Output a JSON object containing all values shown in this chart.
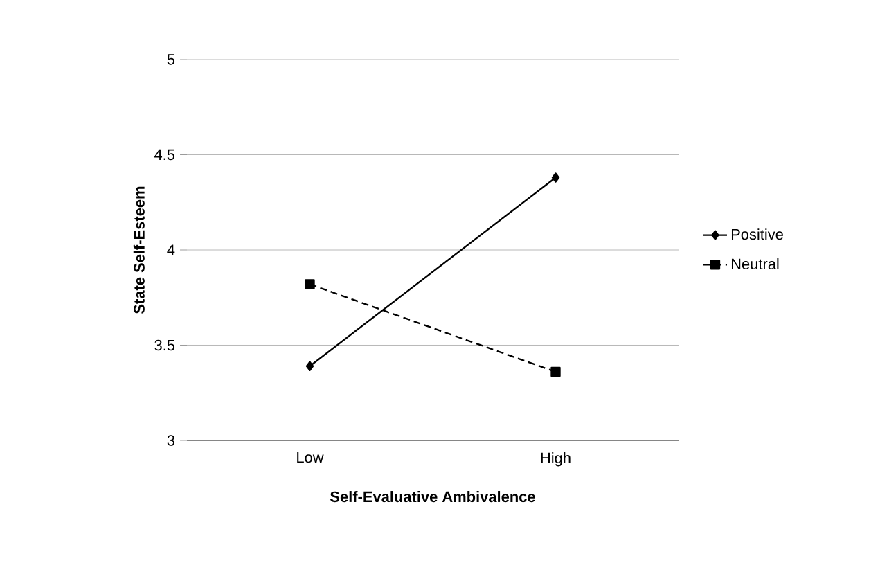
{
  "chart_data": {
    "type": "line",
    "xlabel": "Self-Evaluative Ambivalence",
    "ylabel": "State Self-Esteem",
    "categories": [
      "Low",
      "High"
    ],
    "series": [
      {
        "name": "Positive",
        "color": "#000000",
        "values": [
          3.39,
          4.38
        ],
        "marker": "diamond",
        "line_style": "solid"
      },
      {
        "name": "Neutral",
        "color": "#000000",
        "values": [
          3.82,
          3.36
        ],
        "marker": "square",
        "line_style": "dashed"
      }
    ],
    "ylim": [
      3,
      5
    ],
    "yticks": [
      3,
      3.5,
      4,
      4.5,
      5
    ],
    "grid": "y",
    "legend": "right"
  }
}
